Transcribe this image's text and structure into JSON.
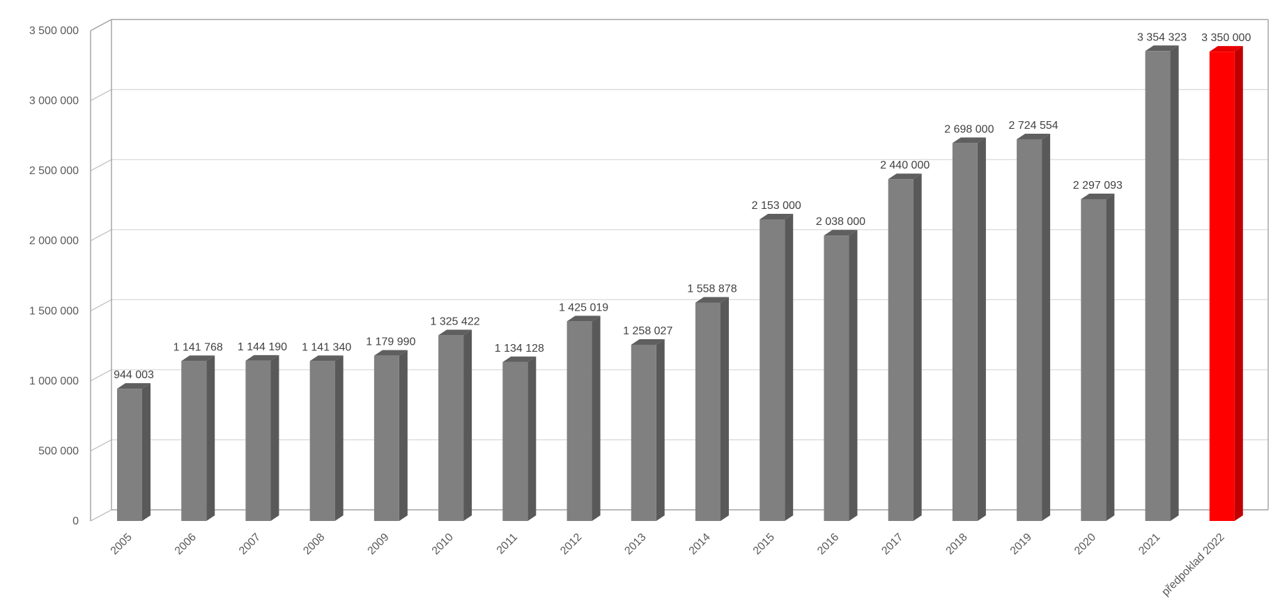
{
  "chart_data": {
    "type": "bar",
    "categories": [
      "2005",
      "2006",
      "2007",
      "2008",
      "2009",
      "2010",
      "2011",
      "2012",
      "2013",
      "2014",
      "2015",
      "2016",
      "2017",
      "2018",
      "2019",
      "2020",
      "2021",
      "předpoklad 2022"
    ],
    "series": [
      {
        "values": [
          944003,
          1141768,
          1144190,
          1141340,
          1179990,
          1325422,
          1134128,
          1425019,
          1258027,
          1558878,
          2153000,
          2038000,
          2440000,
          2698000,
          2724554,
          2297093,
          3354323,
          3350000
        ],
        "labels": [
          "944 003",
          "1 141 768",
          "1 144 190",
          "1 141 340",
          "1 179 990",
          "1 325 422",
          "1 134 128",
          "1 425 019",
          "1 258 027",
          "1 558 878",
          "2 153 000",
          "2 038 000",
          "2 440 000",
          "2 698 000",
          "2 724 554",
          "2 297 093",
          "3 354 323",
          "3 350 000"
        ]
      }
    ],
    "ylim": [
      0,
      3500000
    ],
    "yticks": [
      0,
      500000,
      1000000,
      1500000,
      2000000,
      2500000,
      3000000,
      3500000
    ],
    "ytick_labels": [
      "0",
      "500 000",
      "1 000 000",
      "1 500 000",
      "2 000 000",
      "2 500 000",
      "3 000 000",
      "3 500 000"
    ],
    "grid": true,
    "three_d": true,
    "bar_color": "#808080",
    "highlight_index": 17,
    "highlight_color": "#ff0000"
  }
}
